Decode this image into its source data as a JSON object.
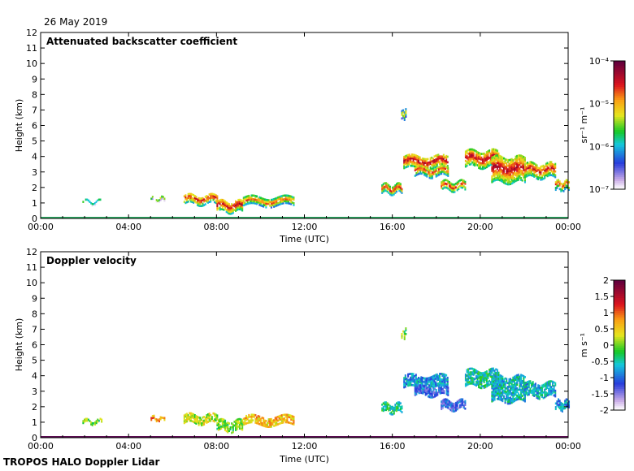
{
  "header": {
    "date": "26 May 2019"
  },
  "footer": {
    "label": "TROPOS HALO Doppler Lidar"
  },
  "chart_data": [
    {
      "type": "heatmap",
      "title": "Attenuated backscatter coefficient",
      "xlabel": "Time (UTC)",
      "ylabel": "Height (km)",
      "xlim": [
        0,
        24
      ],
      "ylim": [
        0,
        12
      ],
      "xticks": [
        "00:00",
        "04:00",
        "08:00",
        "12:00",
        "16:00",
        "20:00",
        "00:00"
      ],
      "yticks": [
        "0",
        "1",
        "2",
        "3",
        "4",
        "5",
        "6",
        "7",
        "8",
        "9",
        "10",
        "11",
        "12"
      ],
      "colorbar": {
        "unit_label": "sr⁻¹ m⁻¹",
        "scale": "log",
        "ticks": [
          "10⁻⁷",
          "10⁻⁶",
          "10⁻⁵",
          "10⁻⁴"
        ]
      },
      "layers": [
        {
          "t0": 1.9,
          "t1": 2.8,
          "base_km": 0.9,
          "top_km": 1.1,
          "level": 0.45
        },
        {
          "t0": 5.0,
          "t1": 5.6,
          "base_km": 1.1,
          "top_km": 1.3,
          "level": 0.55
        },
        {
          "t0": 6.5,
          "t1": 8.0,
          "base_km": 0.9,
          "top_km": 1.5,
          "level": 0.85
        },
        {
          "t0": 8.0,
          "t1": 9.2,
          "base_km": 0.4,
          "top_km": 1.1,
          "level": 0.9
        },
        {
          "t0": 9.2,
          "t1": 11.5,
          "base_km": 0.8,
          "top_km": 1.3,
          "level": 0.8
        },
        {
          "t0": 15.5,
          "t1": 16.4,
          "base_km": 1.6,
          "top_km": 2.1,
          "level": 0.85
        },
        {
          "t0": 16.5,
          "t1": 18.5,
          "base_km": 3.2,
          "top_km": 4.0,
          "level": 0.9
        },
        {
          "t0": 17.0,
          "t1": 18.5,
          "base_km": 2.7,
          "top_km": 3.3,
          "level": 0.8
        },
        {
          "t0": 18.2,
          "t1": 19.3,
          "base_km": 1.8,
          "top_km": 2.3,
          "level": 0.85
        },
        {
          "t0": 19.3,
          "t1": 20.8,
          "base_km": 3.3,
          "top_km": 4.3,
          "level": 0.9
        },
        {
          "t0": 20.5,
          "t1": 22.0,
          "base_km": 2.3,
          "top_km": 3.9,
          "level": 0.9
        },
        {
          "t0": 22.0,
          "t1": 23.4,
          "base_km": 2.6,
          "top_km": 3.5,
          "level": 0.85
        },
        {
          "t0": 23.4,
          "t1": 24.0,
          "base_km": 1.8,
          "top_km": 2.4,
          "level": 0.8
        },
        {
          "t0": 16.4,
          "t1": 16.6,
          "base_km": 6.4,
          "top_km": 6.9,
          "level": 0.7
        }
      ]
    },
    {
      "type": "heatmap",
      "title": "Doppler velocity",
      "xlabel": "Time (UTC)",
      "ylabel": "Height (km)",
      "xlim": [
        0,
        24
      ],
      "ylim": [
        0,
        12
      ],
      "xticks": [
        "00:00",
        "04:00",
        "08:00",
        "12:00",
        "16:00",
        "20:00",
        "00:00"
      ],
      "yticks": [
        "0",
        "1",
        "2",
        "3",
        "4",
        "5",
        "6",
        "7",
        "8",
        "9",
        "10",
        "11",
        "12"
      ],
      "colorbar": {
        "unit_label": "m s⁻¹",
        "scale": "linear",
        "range": [
          -2,
          2
        ],
        "ticks": [
          "-2",
          "-1.5",
          "-1",
          "-0.5",
          "0",
          "0.5",
          "1",
          "1.5",
          "2"
        ]
      },
      "layers": [
        {
          "t0": 1.9,
          "t1": 2.8,
          "base_km": 0.9,
          "top_km": 1.1,
          "level": 0.5
        },
        {
          "t0": 5.0,
          "t1": 5.6,
          "base_km": 1.1,
          "top_km": 1.3,
          "level": 0.7
        },
        {
          "t0": 6.5,
          "t1": 8.0,
          "base_km": 0.9,
          "top_km": 1.5,
          "level": 0.55
        },
        {
          "t0": 8.0,
          "t1": 9.2,
          "base_km": 0.4,
          "top_km": 1.1,
          "level": 0.5
        },
        {
          "t0": 9.2,
          "t1": 11.5,
          "base_km": 0.8,
          "top_km": 1.3,
          "level": 0.65
        },
        {
          "t0": 15.5,
          "t1": 16.4,
          "base_km": 1.6,
          "top_km": 2.1,
          "level": 0.4
        },
        {
          "t0": 16.5,
          "t1": 18.5,
          "base_km": 3.2,
          "top_km": 4.0,
          "level": 0.3
        },
        {
          "t0": 17.0,
          "t1": 18.5,
          "base_km": 2.7,
          "top_km": 3.3,
          "level": 0.22
        },
        {
          "t0": 18.2,
          "t1": 19.3,
          "base_km": 1.8,
          "top_km": 2.3,
          "level": 0.2
        },
        {
          "t0": 19.3,
          "t1": 20.8,
          "base_km": 3.3,
          "top_km": 4.3,
          "level": 0.38
        },
        {
          "t0": 20.5,
          "t1": 22.0,
          "base_km": 2.3,
          "top_km": 3.9,
          "level": 0.35
        },
        {
          "t0": 22.0,
          "t1": 23.4,
          "base_km": 2.6,
          "top_km": 3.5,
          "level": 0.33
        },
        {
          "t0": 23.4,
          "t1": 24.0,
          "base_km": 1.8,
          "top_km": 2.4,
          "level": 0.3
        },
        {
          "t0": 16.4,
          "t1": 16.6,
          "base_km": 6.4,
          "top_km": 6.9,
          "level": 0.5
        }
      ]
    }
  ]
}
